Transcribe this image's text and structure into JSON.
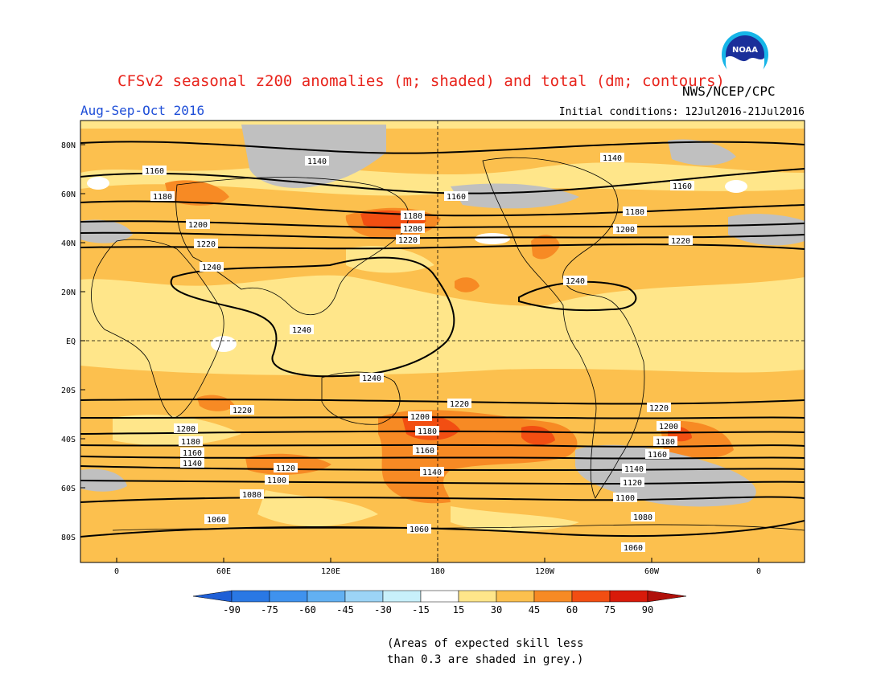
{
  "header": {
    "title": "CFSv2 seasonal z200 anomalies (m; shaded) and total (dm; contours)",
    "agency": "NWS/NCEP/CPC",
    "season": "Aug-Sep-Oct 2016",
    "initial_conditions": "Initial conditions: 12Jul2016-21Jul2016",
    "logo_text": "NOAA"
  },
  "map": {
    "lat_labels": [
      "80N",
      "60N",
      "40N",
      "20N",
      "EQ",
      "20S",
      "40S",
      "60S",
      "80S"
    ],
    "lon_labels": [
      "0",
      "60E",
      "120E",
      "180",
      "120W",
      "60W",
      "0"
    ],
    "contour_labels": [
      "1060",
      "1080",
      "1100",
      "1120",
      "1140",
      "1160",
      "1180",
      "1200",
      "1220",
      "1240"
    ]
  },
  "colorbar": {
    "ticks": [
      "-90",
      "-75",
      "-60",
      "-45",
      "-30",
      "-15",
      "15",
      "30",
      "45",
      "60",
      "75",
      "90"
    ],
    "colors": [
      "#1f5fd6",
      "#2a78e4",
      "#3f92ee",
      "#62b0f2",
      "#9cd4f6",
      "#c8f0fa",
      "#ffffff",
      "#ffe68a",
      "#fcc04e",
      "#f78a24",
      "#f24e12",
      "#d81a0a",
      "#b0100a"
    ]
  },
  "skill_note": {
    "line1": "(Areas of expected skill less",
    "line2": "than 0.3 are shaded in grey.)"
  }
}
